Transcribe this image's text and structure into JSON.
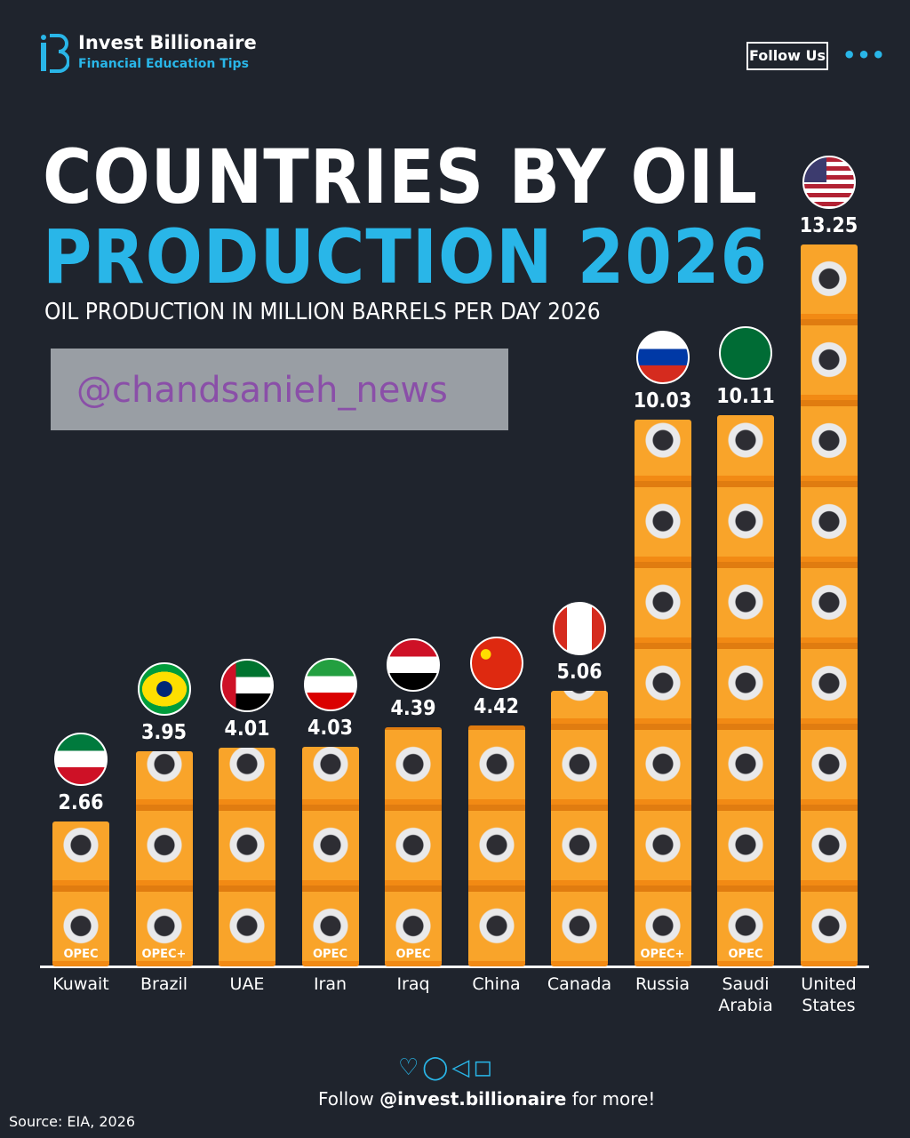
{
  "brand": {
    "name": "Invest Billionaire",
    "tagline": "Financial Education Tips",
    "follow_button": "Follow Us"
  },
  "chart_data": {
    "type": "bar",
    "title": "COUNTRIES BY OIL",
    "title_highlight": "PRODUCTION 2026",
    "subtitle": "OIL PRODUCTION IN MILLION BARRELS PER DAY 2026",
    "categories": [
      "Kuwait",
      "Brazil",
      "UAE",
      "Iran",
      "Iraq",
      "China",
      "Canada",
      "Russia",
      "Saudi Arabia",
      "United States"
    ],
    "values": [
      2.66,
      3.95,
      4.01,
      4.03,
      4.39,
      4.42,
      5.06,
      10.03,
      10.11,
      13.25
    ],
    "group_labels": [
      "OPEC",
      "OPEC+",
      null,
      "OPEC",
      "OPEC",
      null,
      null,
      "OPEC+",
      "OPEC",
      null
    ],
    "color": "#f7941d"
  },
  "watermark": "@chandsanieh_news",
  "footer": {
    "follow": "Follow",
    "handle": "@invest.billionaire",
    "more": "for more!",
    "source": "Source: EIA, 2026"
  }
}
